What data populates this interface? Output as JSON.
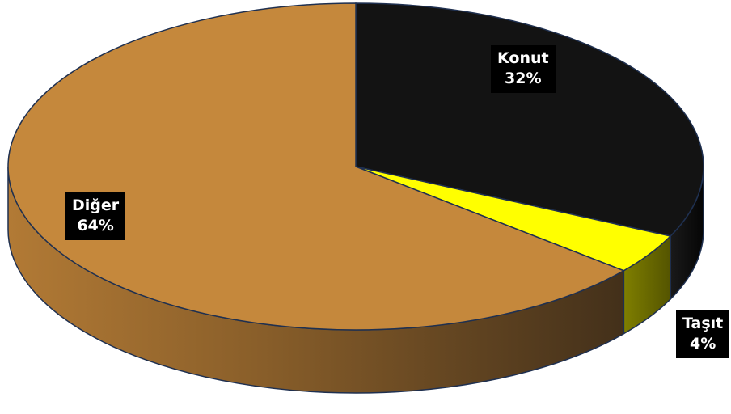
{
  "chart_data": {
    "type": "pie",
    "title": "",
    "legend": "none",
    "slices": [
      {
        "label": "Konut",
        "value": 32,
        "value_label": "32%",
        "color": "#131313"
      },
      {
        "label": "Taşıt",
        "value": 4,
        "value_label": "4%",
        "color": "#ffff00"
      },
      {
        "label": "Diğer",
        "value": 64,
        "value_label": "64%",
        "color": "#c5883c"
      }
    ]
  }
}
